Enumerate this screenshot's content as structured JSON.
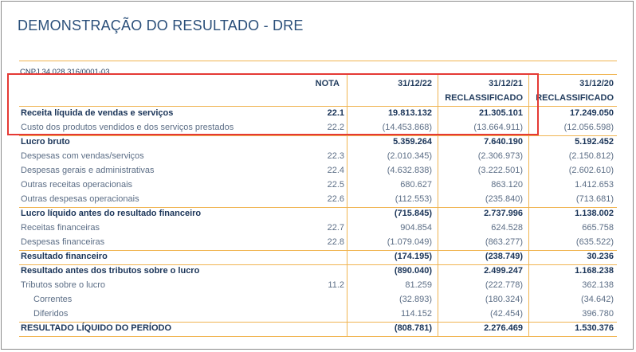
{
  "title": "DEMONSTRAÇÃO DO RESULTADO - DRE",
  "cnpj": "CNPJ 34.028.316/0001-03",
  "headers": {
    "nota": "NOTA",
    "col1": "31/12/22",
    "col2_line1": "31/12/21",
    "col2_line2": "RECLASSIFICADO",
    "col3_line1": "31/12/20",
    "col3_line2": "RECLASSIFICADO"
  },
  "rows": [
    {
      "label": "Receita líquida de vendas e serviços",
      "nota": "22.1",
      "c1": "19.813.132",
      "c2": "21.305.101",
      "c3": "17.249.050"
    },
    {
      "label": "Custo dos produtos vendidos e dos serviços prestados",
      "nota": "22.2",
      "c1": "(14.453.868)",
      "c2": "(13.664.911)",
      "c3": "(12.056.598)"
    },
    {
      "label": "Lucro bruto",
      "nota": "",
      "c1": "5.359.264",
      "c2": "7.640.190",
      "c3": "5.192.452"
    },
    {
      "label": "Despesas com vendas/serviços",
      "nota": "22.3",
      "c1": "(2.010.345)",
      "c2": "(2.306.973)",
      "c3": "(2.150.812)"
    },
    {
      "label": "Despesas gerais e administrativas",
      "nota": "22.4",
      "c1": "(4.632.838)",
      "c2": "(3.222.501)",
      "c3": "(2.602.610)"
    },
    {
      "label": "Outras receitas operacionais",
      "nota": "22.5",
      "c1": "680.627",
      "c2": "863.120",
      "c3": "1.412.653"
    },
    {
      "label": "Outras despesas operacionais",
      "nota": "22.6",
      "c1": "(112.553)",
      "c2": "(235.840)",
      "c3": "(713.681)"
    },
    {
      "label": "Lucro líquido antes do resultado financeiro",
      "nota": "",
      "c1": "(715.845)",
      "c2": "2.737.996",
      "c3": "1.138.002"
    },
    {
      "label": "Receitas financeiras",
      "nota": "22.7",
      "c1": "904.854",
      "c2": "624.528",
      "c3": "665.758"
    },
    {
      "label": "Despesas financeiras",
      "nota": "22.8",
      "c1": "(1.079.049)",
      "c2": "(863.277)",
      "c3": "(635.522)"
    },
    {
      "label": "Resultado financeiro",
      "nota": "",
      "c1": "(174.195)",
      "c2": "(238.749)",
      "c3": "30.236"
    },
    {
      "label": "Resultado antes dos tributos sobre o lucro",
      "nota": "",
      "c1": "(890.040)",
      "c2": "2.499.247",
      "c3": "1.168.238"
    },
    {
      "label": "Tributos sobre o lucro",
      "nota": "11.2",
      "c1": "81.259",
      "c2": "(222.778)",
      "c3": "362.138"
    },
    {
      "label": "Correntes",
      "nota": "",
      "c1": "(32.893)",
      "c2": "(180.324)",
      "c3": "(34.642)"
    },
    {
      "label": "Diferidos",
      "nota": "",
      "c1": "114.152",
      "c2": "(42.454)",
      "c3": "396.780"
    },
    {
      "label": "RESULTADO LÍQUIDO DO PERÍODO",
      "nota": "",
      "c1": "(808.781)",
      "c2": "2.276.469",
      "c3": "1.530.376"
    }
  ]
}
